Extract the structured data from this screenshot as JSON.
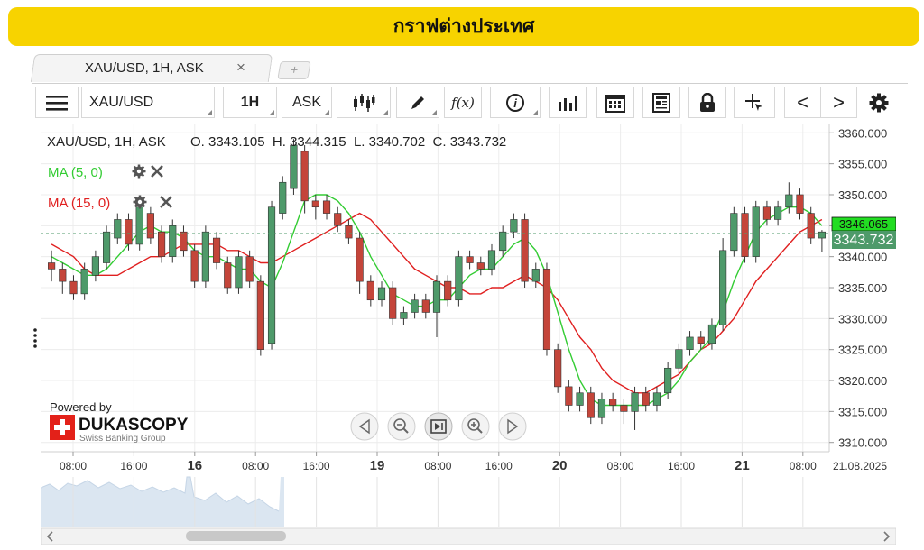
{
  "page_title": "กราฟต่างประเทศ",
  "tab": {
    "label": "XAU/USD, 1H, ASK",
    "close_glyph": "×",
    "add_glyph": "+"
  },
  "toolbar": {
    "menu_icon": "hamburger-icon",
    "instrument": "XAU/USD",
    "period": "1H",
    "side": "ASK",
    "chart_type_icon": "candlestick-icon",
    "draw_icon": "pencil-icon",
    "indicator_label": "f(x)",
    "info_icon": "info-icon",
    "volume_icon": "bar-chart-icon",
    "calendar_icon": "calendar-icon",
    "news_icon": "newspaper-icon",
    "lock_icon": "lock-icon",
    "crosshair_icon": "crosshair-icon",
    "prev_glyph": "<",
    "next_glyph": ">",
    "settings_icon": "gear-icon"
  },
  "chart_header": {
    "instrument": "XAU/USD, 1H, ASK",
    "ohlc": "O. 3343.105  H. 3344.315  L. 3340.702  C. 3343.732"
  },
  "indicators": [
    {
      "label": "MA (5, 0)",
      "color": "#33cc33"
    },
    {
      "label": "MA (15, 0)",
      "color": "#e02020"
    }
  ],
  "branding": {
    "powered_by": "Powered by",
    "logo_text": "DUKASCOPY",
    "tagline": "Swiss Banking Group"
  },
  "price_labels": {
    "ma15_value": "3346.065",
    "current_price": "3343.732"
  },
  "colors": {
    "bull": "#4e9a6a",
    "bear": "#c4453a",
    "ma5": "#33cc33",
    "ma15": "#e02020",
    "accent": "#f7d300"
  },
  "chart_data": {
    "type": "candlestick",
    "y_ticks": [
      "3360.000",
      "3355.000",
      "3350.000",
      "3345.000",
      "3340.000",
      "3335.000",
      "3330.000",
      "3325.000",
      "3320.000",
      "3315.000",
      "3310.000"
    ],
    "ylim": [
      3308.5,
      3361.5
    ],
    "x_labels": [
      {
        "label": "08:00",
        "bold": false
      },
      {
        "label": "16:00",
        "bold": false
      },
      {
        "label": "16",
        "bold": true
      },
      {
        "label": "08:00",
        "bold": false
      },
      {
        "label": "16:00",
        "bold": false
      },
      {
        "label": "19",
        "bold": true
      },
      {
        "label": "08:00",
        "bold": false
      },
      {
        "label": "16:00",
        "bold": false
      },
      {
        "label": "20",
        "bold": true
      },
      {
        "label": "08:00",
        "bold": false
      },
      {
        "label": "16:00",
        "bold": false
      },
      {
        "label": "21",
        "bold": true
      },
      {
        "label": "08:00",
        "bold": false
      },
      {
        "label": "21.08.2025",
        "bold": false
      }
    ],
    "current_price": 3343.732,
    "candles": [
      [
        3339,
        3338,
        3341,
        3336
      ],
      [
        3338,
        3336,
        3339,
        3334
      ],
      [
        3336,
        3334,
        3337,
        3333
      ],
      [
        3334,
        3338,
        3339,
        3333
      ],
      [
        3337,
        3340,
        3341,
        3336
      ],
      [
        3339,
        3344,
        3345,
        3338
      ],
      [
        3343,
        3346,
        3347,
        3342
      ],
      [
        3346,
        3342,
        3347,
        3341
      ],
      [
        3342,
        3348,
        3349,
        3341
      ],
      [
        3347,
        3343,
        3348,
        3342
      ],
      [
        3344,
        3340,
        3345,
        3339
      ],
      [
        3340,
        3345,
        3346,
        3339
      ],
      [
        3344,
        3341,
        3345,
        3340
      ],
      [
        3341,
        3336,
        3342,
        3335
      ],
      [
        3336,
        3344,
        3345,
        3335
      ],
      [
        3343,
        3339,
        3344,
        3338
      ],
      [
        3339,
        3335,
        3340,
        3334
      ],
      [
        3335,
        3340,
        3341,
        3334
      ],
      [
        3340,
        3336,
        3341,
        3335
      ],
      [
        3336,
        3325,
        3337,
        3324
      ],
      [
        3326,
        3348,
        3349,
        3325
      ],
      [
        3347,
        3352,
        3353,
        3346
      ],
      [
        3351,
        3358,
        3359,
        3350
      ],
      [
        3357,
        3349,
        3358,
        3347
      ],
      [
        3349,
        3348,
        3350,
        3346
      ],
      [
        3349,
        3347,
        3350,
        3346
      ],
      [
        3347,
        3345,
        3348,
        3344
      ],
      [
        3345,
        3343,
        3346,
        3342
      ],
      [
        3343,
        3336,
        3344,
        3334
      ],
      [
        3336,
        3333,
        3337,
        3332
      ],
      [
        3333,
        3335,
        3336,
        3332
      ],
      [
        3335,
        3330,
        3336,
        3329
      ],
      [
        3330,
        3331,
        3332,
        3329
      ],
      [
        3331,
        3333,
        3334,
        3330
      ],
      [
        3333,
        3331,
        3334,
        3330
      ],
      [
        3331,
        3336,
        3337,
        3327
      ],
      [
        3336,
        3333,
        3337,
        3332
      ],
      [
        3333,
        3340,
        3341,
        3332
      ],
      [
        3340,
        3339,
        3341,
        3338
      ],
      [
        3339,
        3338,
        3340,
        3337
      ],
      [
        3338,
        3341,
        3342,
        3337
      ],
      [
        3341,
        3344,
        3345,
        3340
      ],
      [
        3344,
        3346,
        3347,
        3343
      ],
      [
        3346,
        3336,
        3347,
        3335
      ],
      [
        3336,
        3338,
        3339,
        3335
      ],
      [
        3338,
        3325,
        3339,
        3324
      ],
      [
        3325,
        3319,
        3326,
        3318
      ],
      [
        3319,
        3316,
        3320,
        3315
      ],
      [
        3316,
        3318,
        3319,
        3315
      ],
      [
        3318,
        3314,
        3319,
        3313
      ],
      [
        3314,
        3317,
        3318,
        3313
      ],
      [
        3317,
        3316,
        3318,
        3315
      ],
      [
        3316,
        3315,
        3317,
        3313
      ],
      [
        3315,
        3318,
        3319,
        3312
      ],
      [
        3318,
        3316,
        3319,
        3315
      ],
      [
        3316,
        3318,
        3319,
        3315
      ],
      [
        3318,
        3322,
        3323,
        3317
      ],
      [
        3322,
        3325,
        3326,
        3321
      ],
      [
        3325,
        3327,
        3328,
        3324
      ],
      [
        3327,
        3326,
        3328,
        3325
      ],
      [
        3326,
        3329,
        3330,
        3325
      ],
      [
        3329,
        3341,
        3343,
        3328
      ],
      [
        3341,
        3347,
        3348,
        3340
      ],
      [
        3347,
        3340,
        3348,
        3339
      ],
      [
        3340,
        3348,
        3349,
        3339
      ],
      [
        3348,
        3346,
        3349,
        3345
      ],
      [
        3346,
        3348,
        3349,
        3345
      ],
      [
        3348,
        3350,
        3352,
        3347
      ],
      [
        3350,
        3347,
        3351,
        3346
      ],
      [
        3347,
        3343,
        3348,
        3342
      ],
      [
        3343,
        3344,
        3344.3,
        3340.7
      ]
    ],
    "ma5": [
      3340,
      3339,
      3338,
      3337,
      3337,
      3338,
      3340,
      3342,
      3344,
      3345,
      3344,
      3344,
      3343,
      3341,
      3340,
      3340,
      3339,
      3338,
      3338,
      3336,
      3335,
      3339,
      3344,
      3349,
      3350,
      3350,
      3349,
      3347,
      3344,
      3340,
      3337,
      3334,
      3333,
      3332,
      3332,
      3333,
      3333,
      3335,
      3337,
      3338,
      3338,
      3340,
      3342,
      3343,
      3341,
      3337,
      3331,
      3325,
      3320,
      3317,
      3316,
      3316,
      3316,
      3316,
      3316,
      3317,
      3318,
      3320,
      3323,
      3325,
      3327,
      3331,
      3336,
      3340,
      3344,
      3346,
      3347,
      3348,
      3348,
      3347,
      3345
    ],
    "ma15": [
      3342,
      3341,
      3340,
      3338,
      3337,
      3337,
      3337,
      3338,
      3339,
      3340,
      3340,
      3341,
      3342,
      3342,
      3342,
      3342,
      3341,
      3341,
      3340,
      3339,
      3339,
      3340,
      3341,
      3342,
      3343,
      3344,
      3345,
      3346,
      3347,
      3346,
      3344,
      3342,
      3340,
      3338,
      3337,
      3336,
      3335,
      3335,
      3334,
      3334,
      3335,
      3335,
      3336,
      3337,
      3336,
      3335,
      3333,
      3330,
      3327,
      3325,
      3322,
      3320,
      3319,
      3318,
      3318,
      3319,
      3320,
      3321,
      3323,
      3325,
      3326,
      3328,
      3330,
      3333,
      3336,
      3338,
      3340,
      3342,
      3344,
      3345,
      3346
    ]
  },
  "navigator": {
    "prev_icon": "play-left-icon",
    "zoom_out_icon": "zoom-out-icon",
    "reset_icon": "fit-icon",
    "zoom_in_icon": "zoom-in-icon",
    "next_icon": "play-right-icon"
  }
}
